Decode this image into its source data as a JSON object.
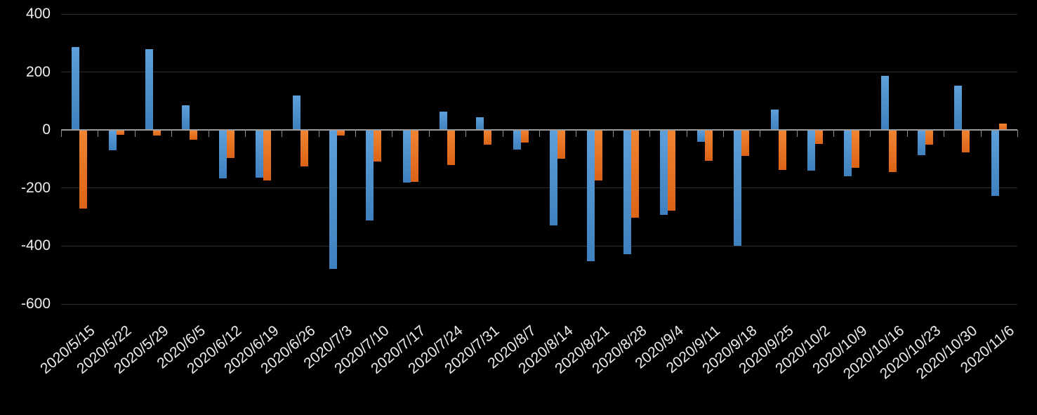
{
  "chart_data": {
    "type": "bar",
    "title": "",
    "xlabel": "",
    "ylabel": "",
    "categories": [
      "2020/5/15",
      "2020/5/22",
      "2020/5/29",
      "2020/6/5",
      "2020/6/12",
      "2020/6/19",
      "2020/6/26",
      "2020/7/3",
      "2020/7/10",
      "2020/7/17",
      "2020/7/24",
      "2020/7/31",
      "2020/8/7",
      "2020/8/14",
      "2020/8/21",
      "2020/8/28",
      "2020/9/4",
      "2020/9/11",
      "2020/9/18",
      "2020/9/25",
      "2020/10/2",
      "2020/10/9",
      "2020/10/16",
      "2020/10/23",
      "2020/10/30",
      "2020/11/6"
    ],
    "series": [
      {
        "name": "series-1-blue",
        "color_top": "#5F9FDA",
        "color_bottom": "#3F80BE",
        "values": [
          285,
          -70,
          278,
          86,
          -166,
          -164,
          120,
          -478,
          -312,
          -180,
          64,
          44,
          -67,
          -328,
          -453,
          -427,
          -293,
          -40,
          -398,
          70,
          -140,
          -160,
          188,
          -86,
          152,
          -227
        ]
      },
      {
        "name": "series-2-orange",
        "color_top": "#F08534",
        "color_bottom": "#DC6317",
        "values": [
          -270,
          -17,
          -19,
          -33,
          -96,
          -174,
          -126,
          -19,
          -108,
          -179,
          -120,
          -51,
          -43,
          -100,
          -174,
          -303,
          -277,
          -106,
          -89,
          -138,
          -47,
          -130,
          -146,
          -50,
          -78,
          22
        ]
      }
    ],
    "ylim": [
      -600,
      400
    ],
    "yticks": [
      400,
      200,
      0,
      -200,
      -400,
      -600
    ],
    "grid": true,
    "legend_position": "none",
    "x_label_rotation_deg": -40,
    "background_color": "#000000",
    "text_color": "#EDEDED",
    "axis_line_color": "#9C9C9C",
    "tick_color": "#8C8C8C",
    "gridline_color": "#2E2E2E"
  }
}
